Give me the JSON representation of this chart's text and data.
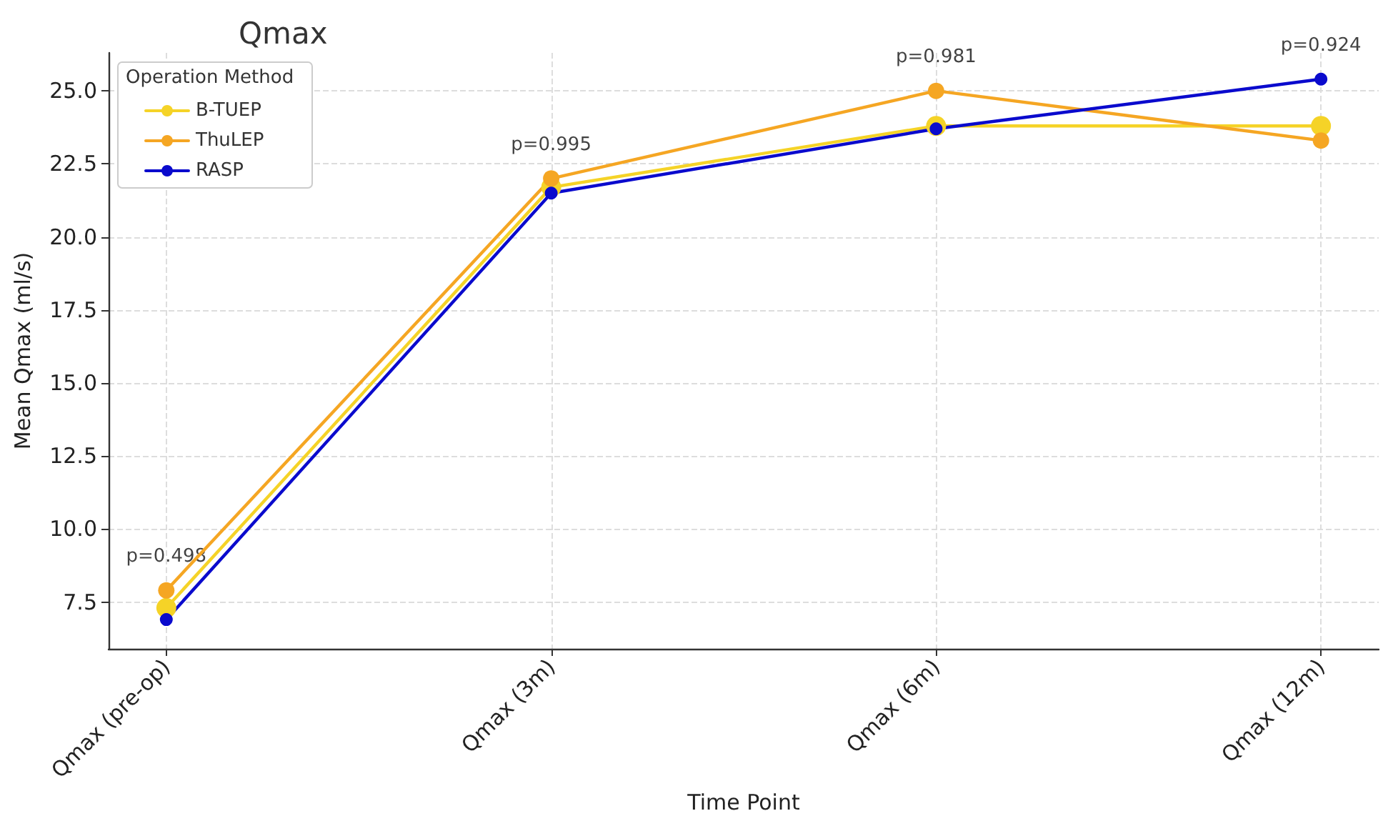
{
  "chart_data": {
    "type": "line",
    "title": "Qmax",
    "xlabel": "Time Point",
    "ylabel": "Mean Qmax (ml/s)",
    "legend_title": "Operation Method",
    "categories": [
      "Qmax (pre-op)",
      "Qmax (3m)",
      "Qmax (6m)",
      "Qmax (12m)"
    ],
    "series": [
      {
        "name": "B-TUEP",
        "color": "#f5d327",
        "values": [
          7.3,
          21.7,
          23.8,
          23.8
        ]
      },
      {
        "name": "ThuLEP",
        "color": "#f5a623",
        "values": [
          7.9,
          22.0,
          25.0,
          23.3
        ]
      },
      {
        "name": "RASP",
        "color": "#0a0acd",
        "values": [
          6.9,
          21.5,
          23.7,
          25.4
        ]
      }
    ],
    "annotations": [
      "p=0.498",
      "p=0.995",
      "p=0.981",
      "p=0.924"
    ],
    "ylim": [
      5.9,
      26.3
    ],
    "yticks": [
      {
        "value": 7.5,
        "label": "7.5"
      },
      {
        "value": 10,
        "label": "10.0"
      },
      {
        "value": 12.5,
        "label": "12.5"
      },
      {
        "value": 15,
        "label": "15.0"
      },
      {
        "value": 17.5,
        "label": "17.5"
      },
      {
        "value": 20,
        "label": "20.0"
      },
      {
        "value": 22.5,
        "label": "22.5"
      },
      {
        "value": 25,
        "label": "25.0"
      }
    ],
    "grid": true,
    "legend": "top left",
    "marker": "circle",
    "line_style": "solid"
  }
}
